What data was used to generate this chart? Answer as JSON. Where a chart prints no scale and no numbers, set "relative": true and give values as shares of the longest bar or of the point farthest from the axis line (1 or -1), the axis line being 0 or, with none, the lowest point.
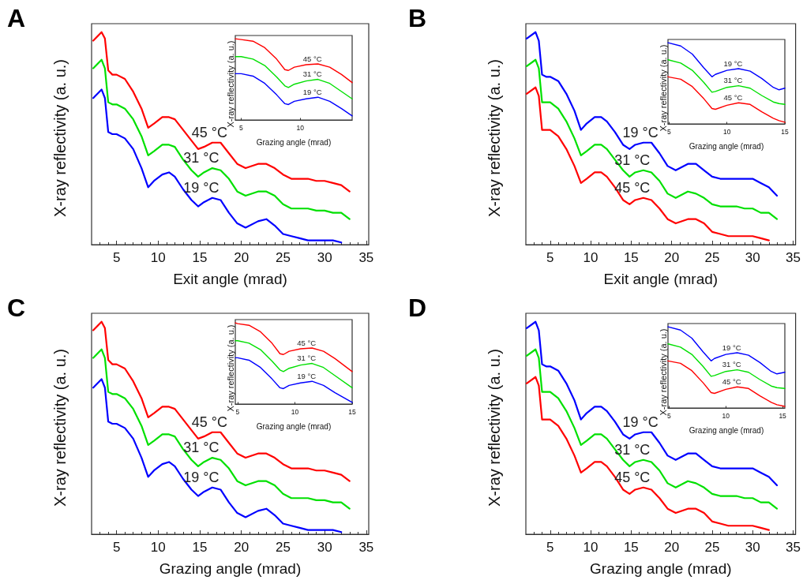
{
  "chart_data": [
    {
      "type": "line",
      "title": "A",
      "xlabel": "Exit angle (mrad)",
      "ylabel": "X-ray reflectivity (a. u.)",
      "relative": true,
      "marker": "none",
      "xlim": [
        2,
        35.3
      ],
      "xticks": [
        5,
        10,
        15,
        20,
        25,
        30,
        35
      ],
      "x": [
        2.2,
        3.2,
        3.6,
        4.0,
        4.5,
        5,
        6,
        7,
        8,
        8.8,
        9.5,
        10.5,
        11.3,
        12,
        13,
        14,
        14.8,
        15.5,
        16.5,
        17.5,
        18.5,
        19.5,
        20.5,
        22,
        23,
        24,
        25,
        26,
        27,
        28,
        29,
        30,
        31,
        32,
        33
      ],
      "series": [
        {
          "name": "45 °C",
          "color": "#ff0000",
          "values": [
            0.96,
            1.0,
            0.97,
            0.82,
            0.8,
            0.8,
            0.78,
            0.72,
            0.64,
            0.55,
            0.57,
            0.6,
            0.6,
            0.59,
            0.54,
            0.49,
            0.45,
            0.46,
            0.48,
            0.48,
            0.43,
            0.38,
            0.36,
            0.38,
            0.38,
            0.36,
            0.33,
            0.31,
            0.31,
            0.31,
            0.3,
            0.3,
            0.29,
            0.28,
            0.25
          ]
        },
        {
          "name": "31 °C",
          "color": "#00e000",
          "values": [
            0.83,
            0.87,
            0.83,
            0.67,
            0.66,
            0.66,
            0.64,
            0.59,
            0.51,
            0.42,
            0.44,
            0.47,
            0.47,
            0.46,
            0.4,
            0.35,
            0.32,
            0.34,
            0.36,
            0.35,
            0.31,
            0.25,
            0.23,
            0.25,
            0.25,
            0.23,
            0.19,
            0.17,
            0.17,
            0.17,
            0.16,
            0.16,
            0.15,
            0.15,
            0.12
          ]
        },
        {
          "name": "19 °C",
          "color": "#0000ff",
          "values": [
            0.69,
            0.73,
            0.69,
            0.53,
            0.52,
            0.52,
            0.5,
            0.45,
            0.36,
            0.27,
            0.3,
            0.33,
            0.34,
            0.32,
            0.26,
            0.21,
            0.18,
            0.2,
            0.22,
            0.21,
            0.15,
            0.1,
            0.08,
            0.11,
            0.12,
            0.09,
            0.05,
            0.04,
            0.03,
            0.02,
            0.02,
            0.02,
            0.02,
            0.01,
            null
          ]
        }
      ]
    },
    {
      "type": "line",
      "xlabel": "Grazing angle (mrad)",
      "ylabel": "X-ray reflectivity (a. u.)",
      "relative": true,
      "marker": "none",
      "xlim": [
        4.5,
        14.4
      ],
      "xticks": [
        5,
        10
      ],
      "x": [
        4.5,
        5,
        6,
        7,
        8,
        8.7,
        9,
        9.5,
        10.5,
        11.5,
        12.5,
        13.5,
        14.4
      ],
      "series": [
        {
          "name": "45 °C",
          "color": "#ff0000",
          "values": [
            1.0,
            0.99,
            0.97,
            0.89,
            0.75,
            0.62,
            0.61,
            0.65,
            0.68,
            0.69,
            0.65,
            0.56,
            0.46
          ]
        },
        {
          "name": "31 °C",
          "color": "#00e000",
          "values": [
            0.78,
            0.78,
            0.75,
            0.67,
            0.53,
            0.42,
            0.4,
            0.44,
            0.48,
            0.5,
            0.45,
            0.35,
            0.26
          ]
        },
        {
          "name": "19 °C",
          "color": "#0000ff",
          "values": [
            0.57,
            0.57,
            0.54,
            0.45,
            0.31,
            0.2,
            0.19,
            0.23,
            0.26,
            0.28,
            0.23,
            0.14,
            0.05
          ]
        }
      ]
    },
    {
      "type": "line",
      "title": "B",
      "xlabel": "Exit angle (mrad)",
      "ylabel": "X-ray reflectivity (a. u.)",
      "relative": true,
      "marker": "none",
      "xlim": [
        2,
        35.3
      ],
      "xticks": [
        5,
        10,
        15,
        20,
        25,
        30,
        35
      ],
      "x": [
        2.1,
        3.2,
        3.6,
        4.0,
        4.5,
        5,
        6,
        7,
        8,
        8.8,
        9.5,
        10.5,
        11.3,
        12,
        13,
        14,
        14.8,
        15.5,
        16.5,
        17.5,
        18.5,
        19.5,
        20.5,
        22,
        23,
        24,
        25,
        26,
        27,
        28,
        29,
        30,
        31,
        32,
        33
      ],
      "series": [
        {
          "name": "19 °C",
          "color": "#0000ff",
          "values": [
            0.97,
            1.0,
            0.96,
            0.8,
            0.79,
            0.79,
            0.77,
            0.71,
            0.63,
            0.54,
            0.57,
            0.6,
            0.6,
            0.58,
            0.53,
            0.47,
            0.45,
            0.47,
            0.48,
            0.48,
            0.43,
            0.37,
            0.35,
            0.38,
            0.38,
            0.35,
            0.32,
            0.31,
            0.31,
            0.31,
            0.31,
            0.31,
            0.29,
            0.27,
            0.23
          ]
        },
        {
          "name": "31 °C",
          "color": "#00e000",
          "values": [
            0.84,
            0.87,
            0.83,
            0.67,
            0.67,
            0.67,
            0.64,
            0.58,
            0.5,
            0.42,
            0.44,
            0.47,
            0.47,
            0.45,
            0.4,
            0.35,
            0.32,
            0.34,
            0.35,
            0.34,
            0.3,
            0.24,
            0.22,
            0.25,
            0.24,
            0.22,
            0.19,
            0.18,
            0.18,
            0.18,
            0.17,
            0.17,
            0.15,
            0.15,
            0.12
          ]
        },
        {
          "name": "45 °C",
          "color": "#ff0000",
          "values": [
            0.71,
            0.74,
            0.7,
            0.54,
            0.54,
            0.54,
            0.51,
            0.45,
            0.37,
            0.29,
            0.31,
            0.34,
            0.34,
            0.32,
            0.27,
            0.21,
            0.19,
            0.21,
            0.22,
            0.21,
            0.17,
            0.12,
            0.1,
            0.12,
            0.12,
            0.1,
            0.06,
            0.05,
            0.04,
            0.04,
            0.04,
            0.04,
            0.03,
            0.02,
            null
          ]
        }
      ]
    },
    {
      "type": "line",
      "xlabel": "Grazing angle (mrad)",
      "ylabel": "X-ray reflectivity (a. u.)",
      "relative": true,
      "marker": "none",
      "xlim": [
        4.9,
        15
      ],
      "xticks": [
        5,
        10,
        15
      ],
      "x": [
        4.9,
        6,
        7,
        8,
        8.7,
        9,
        10,
        11,
        12,
        13,
        14,
        14.5,
        15
      ],
      "series": [
        {
          "name": "19 °C",
          "color": "#0000ff",
          "values": [
            1.0,
            0.96,
            0.86,
            0.69,
            0.58,
            0.61,
            0.66,
            0.68,
            0.65,
            0.56,
            0.45,
            0.42,
            0.44
          ]
        },
        {
          "name": "31 °C",
          "color": "#00e000",
          "values": [
            0.79,
            0.75,
            0.66,
            0.51,
            0.39,
            0.4,
            0.45,
            0.47,
            0.44,
            0.35,
            0.27,
            0.25,
            0.24
          ]
        },
        {
          "name": "45 °C",
          "color": "#ff0000",
          "values": [
            0.58,
            0.55,
            0.46,
            0.31,
            0.19,
            0.18,
            0.23,
            0.26,
            0.24,
            0.15,
            0.07,
            0.04,
            0.02
          ]
        }
      ]
    },
    {
      "type": "line",
      "title": "C",
      "xlabel": "Grazing angle (mrad)",
      "ylabel": "X-ray reflectivity (a. u.)",
      "relative": true,
      "marker": "none",
      "xlim": [
        2,
        35.3
      ],
      "xticks": [
        5,
        10,
        15,
        20,
        25,
        30,
        35
      ],
      "x": [
        2.2,
        3.2,
        3.6,
        4.0,
        4.5,
        5,
        6,
        7,
        8,
        8.8,
        9.5,
        10.5,
        11.3,
        12,
        13,
        14,
        14.8,
        15.5,
        16.5,
        17.5,
        18.5,
        19.5,
        20.5,
        22,
        23,
        24,
        25,
        26,
        27,
        28,
        29,
        30,
        31,
        32,
        33
      ],
      "series": [
        {
          "name": "45 °C",
          "color": "#ff0000",
          "values": [
            0.96,
            1.0,
            0.97,
            0.82,
            0.8,
            0.8,
            0.78,
            0.72,
            0.64,
            0.55,
            0.57,
            0.6,
            0.6,
            0.59,
            0.54,
            0.49,
            0.45,
            0.46,
            0.48,
            0.48,
            0.43,
            0.38,
            0.36,
            0.38,
            0.38,
            0.36,
            0.33,
            0.31,
            0.31,
            0.31,
            0.3,
            0.3,
            0.29,
            0.28,
            0.25
          ]
        },
        {
          "name": "31 °C",
          "color": "#00e000",
          "values": [
            0.83,
            0.87,
            0.83,
            0.67,
            0.66,
            0.66,
            0.64,
            0.59,
            0.51,
            0.42,
            0.44,
            0.47,
            0.47,
            0.46,
            0.4,
            0.35,
            0.32,
            0.34,
            0.36,
            0.35,
            0.31,
            0.25,
            0.23,
            0.25,
            0.25,
            0.23,
            0.19,
            0.17,
            0.17,
            0.17,
            0.16,
            0.16,
            0.15,
            0.15,
            0.12
          ]
        },
        {
          "name": "19 °C",
          "color": "#0000ff",
          "values": [
            0.69,
            0.73,
            0.69,
            0.53,
            0.52,
            0.52,
            0.5,
            0.45,
            0.36,
            0.27,
            0.3,
            0.33,
            0.34,
            0.32,
            0.26,
            0.21,
            0.18,
            0.2,
            0.22,
            0.21,
            0.15,
            0.1,
            0.08,
            0.11,
            0.12,
            0.09,
            0.05,
            0.04,
            0.03,
            0.02,
            0.02,
            0.02,
            0.02,
            0.01,
            null
          ]
        }
      ]
    },
    {
      "type": "line",
      "xlabel": "Grazing angle (mrad)",
      "ylabel": "X-ray reflectivity (a. u.)",
      "relative": true,
      "marker": "none",
      "xlim": [
        4.8,
        15
      ],
      "xticks": [
        5,
        10,
        15
      ],
      "x": [
        4.8,
        5,
        6,
        7,
        8,
        8.7,
        9,
        9.5,
        10.5,
        11.5,
        12.5,
        13.5,
        15
      ],
      "series": [
        {
          "name": "45 °C",
          "color": "#ff0000",
          "values": [
            1.0,
            0.99,
            0.97,
            0.89,
            0.75,
            0.62,
            0.61,
            0.65,
            0.68,
            0.69,
            0.65,
            0.56,
            0.4
          ]
        },
        {
          "name": "31 °C",
          "color": "#00e000",
          "values": [
            0.78,
            0.78,
            0.75,
            0.67,
            0.53,
            0.42,
            0.4,
            0.44,
            0.48,
            0.5,
            0.45,
            0.35,
            0.2
          ]
        },
        {
          "name": "19 °C",
          "color": "#0000ff",
          "values": [
            0.57,
            0.57,
            0.54,
            0.45,
            0.31,
            0.2,
            0.19,
            0.23,
            0.26,
            0.28,
            0.23,
            0.14,
            0.02
          ]
        }
      ]
    },
    {
      "type": "line",
      "title": "D",
      "xlabel": "Grazing angle (mrad)",
      "ylabel": "X-ray reflectivity (a. u.)",
      "relative": true,
      "marker": "none",
      "xlim": [
        2,
        35.3
      ],
      "xticks": [
        5,
        10,
        15,
        20,
        25,
        30,
        35
      ],
      "x": [
        2.1,
        3.2,
        3.6,
        4.0,
        4.5,
        5,
        6,
        7,
        8,
        8.8,
        9.5,
        10.5,
        11.3,
        12,
        13,
        14,
        14.8,
        15.5,
        16.5,
        17.5,
        18.5,
        19.5,
        20.5,
        22,
        23,
        24,
        25,
        26,
        27,
        28,
        29,
        30,
        31,
        32,
        33
      ],
      "series": [
        {
          "name": "19 °C",
          "color": "#0000ff",
          "values": [
            0.97,
            1.0,
            0.96,
            0.8,
            0.79,
            0.79,
            0.77,
            0.71,
            0.63,
            0.54,
            0.57,
            0.6,
            0.6,
            0.58,
            0.53,
            0.47,
            0.45,
            0.47,
            0.48,
            0.48,
            0.43,
            0.37,
            0.35,
            0.38,
            0.38,
            0.35,
            0.32,
            0.31,
            0.31,
            0.31,
            0.31,
            0.31,
            0.29,
            0.27,
            0.23
          ]
        },
        {
          "name": "31 °C",
          "color": "#00e000",
          "values": [
            0.84,
            0.87,
            0.83,
            0.67,
            0.67,
            0.67,
            0.64,
            0.58,
            0.5,
            0.42,
            0.44,
            0.47,
            0.47,
            0.45,
            0.4,
            0.35,
            0.32,
            0.34,
            0.35,
            0.34,
            0.3,
            0.24,
            0.22,
            0.25,
            0.24,
            0.22,
            0.19,
            0.18,
            0.18,
            0.18,
            0.17,
            0.17,
            0.15,
            0.15,
            0.12
          ]
        },
        {
          "name": "45 °C",
          "color": "#ff0000",
          "values": [
            0.71,
            0.74,
            0.7,
            0.54,
            0.54,
            0.54,
            0.51,
            0.45,
            0.37,
            0.29,
            0.31,
            0.34,
            0.34,
            0.32,
            0.27,
            0.21,
            0.19,
            0.21,
            0.22,
            0.21,
            0.17,
            0.12,
            0.1,
            0.12,
            0.12,
            0.1,
            0.06,
            0.05,
            0.04,
            0.04,
            0.04,
            0.04,
            0.03,
            0.02,
            null
          ]
        }
      ]
    },
    {
      "type": "line",
      "xlabel": "Grazing angle (mrad)",
      "ylabel": "X-ray reflectivity (a. u.)",
      "relative": true,
      "marker": "none",
      "xlim": [
        4.9,
        15.2
      ],
      "xticks": [
        5,
        10,
        15
      ],
      "x": [
        4.9,
        6,
        7,
        8,
        8.7,
        9,
        10,
        11,
        12,
        13,
        14,
        14.5,
        15.2
      ],
      "series": [
        {
          "name": "19 °C",
          "color": "#0000ff",
          "values": [
            1.0,
            0.96,
            0.86,
            0.69,
            0.58,
            0.61,
            0.66,
            0.68,
            0.65,
            0.56,
            0.45,
            0.42,
            0.44
          ]
        },
        {
          "name": "31 °C",
          "color": "#00e000",
          "values": [
            0.79,
            0.75,
            0.66,
            0.51,
            0.39,
            0.4,
            0.45,
            0.47,
            0.44,
            0.35,
            0.27,
            0.25,
            0.24
          ]
        },
        {
          "name": "45 °C",
          "color": "#ff0000",
          "values": [
            0.58,
            0.55,
            0.46,
            0.31,
            0.19,
            0.18,
            0.23,
            0.26,
            0.24,
            0.15,
            0.07,
            0.04,
            0.02
          ]
        }
      ]
    }
  ]
}
